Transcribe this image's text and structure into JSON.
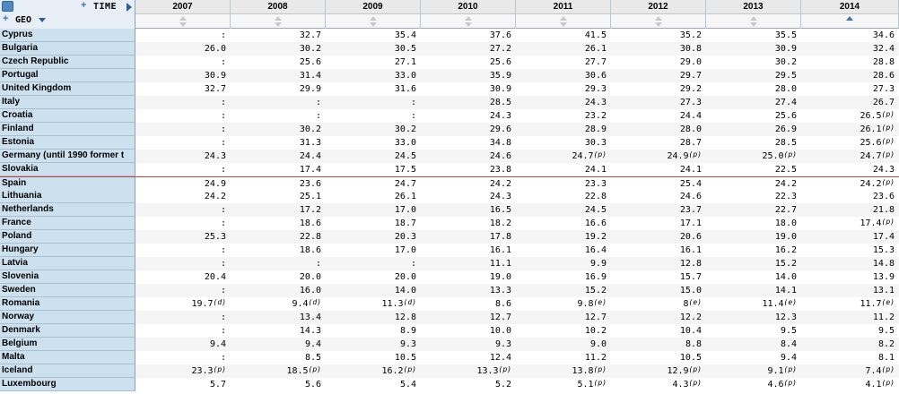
{
  "header": {
    "time_label": "TIME",
    "geo_label": "GEO",
    "plus_symbol": "+"
  },
  "years": [
    "2007",
    "2008",
    "2009",
    "2010",
    "2011",
    "2012",
    "2013",
    "2014"
  ],
  "sorted_column_index": 7,
  "highlighted_row": "Spain",
  "rows": [
    {
      "geo": "Cyprus",
      "vals": [
        [
          ":",
          ""
        ],
        [
          "32.7",
          ""
        ],
        [
          "35.4",
          ""
        ],
        [
          "37.6",
          ""
        ],
        [
          "41.5",
          ""
        ],
        [
          "35.2",
          ""
        ],
        [
          "35.5",
          ""
        ],
        [
          "34.6",
          ""
        ]
      ]
    },
    {
      "geo": "Bulgaria",
      "vals": [
        [
          "26.0",
          ""
        ],
        [
          "30.2",
          ""
        ],
        [
          "30.5",
          ""
        ],
        [
          "27.2",
          ""
        ],
        [
          "26.1",
          ""
        ],
        [
          "30.8",
          ""
        ],
        [
          "30.9",
          ""
        ],
        [
          "32.4",
          ""
        ]
      ]
    },
    {
      "geo": "Czech Republic",
      "vals": [
        [
          ":",
          ""
        ],
        [
          "25.6",
          ""
        ],
        [
          "27.1",
          ""
        ],
        [
          "25.6",
          ""
        ],
        [
          "27.7",
          ""
        ],
        [
          "29.0",
          ""
        ],
        [
          "30.2",
          ""
        ],
        [
          "28.8",
          ""
        ]
      ]
    },
    {
      "geo": "Portugal",
      "vals": [
        [
          "30.9",
          ""
        ],
        [
          "31.4",
          ""
        ],
        [
          "33.0",
          ""
        ],
        [
          "35.9",
          ""
        ],
        [
          "30.6",
          ""
        ],
        [
          "29.7",
          ""
        ],
        [
          "29.5",
          ""
        ],
        [
          "28.6",
          ""
        ]
      ]
    },
    {
      "geo": "United Kingdom",
      "vals": [
        [
          "32.7",
          ""
        ],
        [
          "29.9",
          ""
        ],
        [
          "31.6",
          ""
        ],
        [
          "30.9",
          ""
        ],
        [
          "29.3",
          ""
        ],
        [
          "29.2",
          ""
        ],
        [
          "28.0",
          ""
        ],
        [
          "27.3",
          ""
        ]
      ]
    },
    {
      "geo": "Italy",
      "vals": [
        [
          ":",
          ""
        ],
        [
          ":",
          ""
        ],
        [
          ":",
          ""
        ],
        [
          "28.5",
          ""
        ],
        [
          "24.3",
          ""
        ],
        [
          "27.3",
          ""
        ],
        [
          "27.4",
          ""
        ],
        [
          "26.7",
          ""
        ]
      ]
    },
    {
      "geo": "Croatia",
      "vals": [
        [
          ":",
          ""
        ],
        [
          ":",
          ""
        ],
        [
          ":",
          ""
        ],
        [
          "24.3",
          ""
        ],
        [
          "23.2",
          ""
        ],
        [
          "24.4",
          ""
        ],
        [
          "25.6",
          ""
        ],
        [
          "26.5",
          "(p)"
        ]
      ]
    },
    {
      "geo": "Finland",
      "vals": [
        [
          ":",
          ""
        ],
        [
          "30.2",
          ""
        ],
        [
          "30.2",
          ""
        ],
        [
          "29.6",
          ""
        ],
        [
          "28.9",
          ""
        ],
        [
          "28.0",
          ""
        ],
        [
          "26.9",
          ""
        ],
        [
          "26.1",
          "(p)"
        ]
      ]
    },
    {
      "geo": "Estonia",
      "vals": [
        [
          ":",
          ""
        ],
        [
          "31.3",
          ""
        ],
        [
          "33.0",
          ""
        ],
        [
          "34.8",
          ""
        ],
        [
          "30.3",
          ""
        ],
        [
          "28.7",
          ""
        ],
        [
          "28.5",
          ""
        ],
        [
          "25.6",
          "(p)"
        ]
      ]
    },
    {
      "geo": "Germany (until 1990 former t",
      "vals": [
        [
          "24.3",
          ""
        ],
        [
          "24.4",
          ""
        ],
        [
          "24.5",
          ""
        ],
        [
          "24.6",
          ""
        ],
        [
          "24.7",
          "(p)"
        ],
        [
          "24.9",
          "(p)"
        ],
        [
          "25.0",
          "(p)"
        ],
        [
          "24.7",
          "(p)"
        ]
      ]
    },
    {
      "geo": "Slovakia",
      "vals": [
        [
          ":",
          ""
        ],
        [
          "17.4",
          ""
        ],
        [
          "17.5",
          ""
        ],
        [
          "23.8",
          ""
        ],
        [
          "24.1",
          ""
        ],
        [
          "24.1",
          ""
        ],
        [
          "22.5",
          ""
        ],
        [
          "24.3",
          ""
        ]
      ]
    },
    {
      "geo": "Spain",
      "vals": [
        [
          "24.9",
          ""
        ],
        [
          "23.6",
          ""
        ],
        [
          "24.7",
          ""
        ],
        [
          "24.2",
          ""
        ],
        [
          "23.3",
          ""
        ],
        [
          "25.4",
          ""
        ],
        [
          "24.2",
          ""
        ],
        [
          "24.2",
          "(p)"
        ]
      ]
    },
    {
      "geo": "Lithuania",
      "vals": [
        [
          "24.2",
          ""
        ],
        [
          "25.1",
          ""
        ],
        [
          "26.1",
          ""
        ],
        [
          "24.3",
          ""
        ],
        [
          "22.8",
          ""
        ],
        [
          "24.6",
          ""
        ],
        [
          "22.3",
          ""
        ],
        [
          "23.6",
          ""
        ]
      ]
    },
    {
      "geo": "Netherlands",
      "vals": [
        [
          ":",
          ""
        ],
        [
          "17.2",
          ""
        ],
        [
          "17.0",
          ""
        ],
        [
          "16.5",
          ""
        ],
        [
          "24.5",
          ""
        ],
        [
          "23.7",
          ""
        ],
        [
          "22.7",
          ""
        ],
        [
          "21.8",
          ""
        ]
      ]
    },
    {
      "geo": "France",
      "vals": [
        [
          ":",
          ""
        ],
        [
          "18.6",
          ""
        ],
        [
          "18.7",
          ""
        ],
        [
          "18.2",
          ""
        ],
        [
          "16.6",
          ""
        ],
        [
          "17.1",
          ""
        ],
        [
          "18.0",
          ""
        ],
        [
          "17.4",
          "(p)"
        ]
      ]
    },
    {
      "geo": "Poland",
      "vals": [
        [
          "25.3",
          ""
        ],
        [
          "22.8",
          ""
        ],
        [
          "20.3",
          ""
        ],
        [
          "17.8",
          ""
        ],
        [
          "19.2",
          ""
        ],
        [
          "20.6",
          ""
        ],
        [
          "19.0",
          ""
        ],
        [
          "17.4",
          ""
        ]
      ]
    },
    {
      "geo": "Hungary",
      "vals": [
        [
          ":",
          ""
        ],
        [
          "18.6",
          ""
        ],
        [
          "17.0",
          ""
        ],
        [
          "16.1",
          ""
        ],
        [
          "16.4",
          ""
        ],
        [
          "16.1",
          ""
        ],
        [
          "16.2",
          ""
        ],
        [
          "15.3",
          ""
        ]
      ]
    },
    {
      "geo": "Latvia",
      "vals": [
        [
          ":",
          ""
        ],
        [
          ":",
          ""
        ],
        [
          ":",
          ""
        ],
        [
          "11.1",
          ""
        ],
        [
          "9.9",
          ""
        ],
        [
          "12.8",
          ""
        ],
        [
          "15.2",
          ""
        ],
        [
          "14.8",
          ""
        ]
      ]
    },
    {
      "geo": "Slovenia",
      "vals": [
        [
          "20.4",
          ""
        ],
        [
          "20.0",
          ""
        ],
        [
          "20.0",
          ""
        ],
        [
          "19.0",
          ""
        ],
        [
          "16.9",
          ""
        ],
        [
          "15.7",
          ""
        ],
        [
          "14.0",
          ""
        ],
        [
          "13.9",
          ""
        ]
      ]
    },
    {
      "geo": "Sweden",
      "vals": [
        [
          ":",
          ""
        ],
        [
          "16.0",
          ""
        ],
        [
          "14.0",
          ""
        ],
        [
          "13.3",
          ""
        ],
        [
          "15.2",
          ""
        ],
        [
          "15.0",
          ""
        ],
        [
          "14.1",
          ""
        ],
        [
          "13.1",
          ""
        ]
      ]
    },
    {
      "geo": "Romania",
      "vals": [
        [
          "19.7",
          "(d)"
        ],
        [
          "9.4",
          "(d)"
        ],
        [
          "11.3",
          "(d)"
        ],
        [
          "8.6",
          ""
        ],
        [
          "9.8",
          "(e)"
        ],
        [
          "8",
          "(e)"
        ],
        [
          "11.4",
          "(e)"
        ],
        [
          "11.7",
          "(e)"
        ]
      ]
    },
    {
      "geo": "Norway",
      "vals": [
        [
          ":",
          ""
        ],
        [
          "13.4",
          ""
        ],
        [
          "12.8",
          ""
        ],
        [
          "12.7",
          ""
        ],
        [
          "12.7",
          ""
        ],
        [
          "12.2",
          ""
        ],
        [
          "12.3",
          ""
        ],
        [
          "11.2",
          ""
        ]
      ]
    },
    {
      "geo": "Denmark",
      "vals": [
        [
          ":",
          ""
        ],
        [
          "14.3",
          ""
        ],
        [
          "8.9",
          ""
        ],
        [
          "10.0",
          ""
        ],
        [
          "10.2",
          ""
        ],
        [
          "10.4",
          ""
        ],
        [
          "9.5",
          ""
        ],
        [
          "9.5",
          ""
        ]
      ]
    },
    {
      "geo": "Belgium",
      "vals": [
        [
          "9.4",
          ""
        ],
        [
          "9.4",
          ""
        ],
        [
          "9.3",
          ""
        ],
        [
          "9.3",
          ""
        ],
        [
          "9.0",
          ""
        ],
        [
          "8.8",
          ""
        ],
        [
          "8.4",
          ""
        ],
        [
          "8.2",
          ""
        ]
      ]
    },
    {
      "geo": "Malta",
      "vals": [
        [
          ":",
          ""
        ],
        [
          "8.5",
          ""
        ],
        [
          "10.5",
          ""
        ],
        [
          "12.4",
          ""
        ],
        [
          "11.2",
          ""
        ],
        [
          "10.5",
          ""
        ],
        [
          "9.4",
          ""
        ],
        [
          "8.1",
          ""
        ]
      ]
    },
    {
      "geo": "Iceland",
      "vals": [
        [
          "23.3",
          "(p)"
        ],
        [
          "18.5",
          "(p)"
        ],
        [
          "16.2",
          "(p)"
        ],
        [
          "13.3",
          "(p)"
        ],
        [
          "13.8",
          "(p)"
        ],
        [
          "12.9",
          "(p)"
        ],
        [
          "9.1",
          "(p)"
        ],
        [
          "7.4",
          "(p)"
        ]
      ]
    },
    {
      "geo": "Luxembourg",
      "vals": [
        [
          "5.7",
          ""
        ],
        [
          "5.6",
          ""
        ],
        [
          "5.4",
          ""
        ],
        [
          "5.2",
          ""
        ],
        [
          "5.1",
          "(p)"
        ],
        [
          "4.3",
          "(p)"
        ],
        [
          "4.6",
          "(p)"
        ],
        [
          "4.1",
          "(p)"
        ]
      ]
    }
  ]
}
